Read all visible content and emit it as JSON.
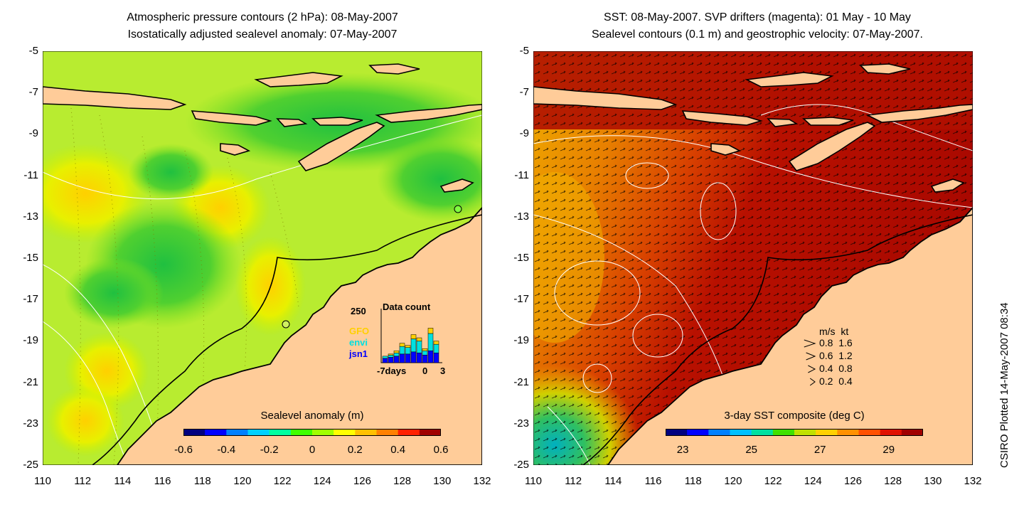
{
  "left_panel": {
    "title_line1": "Atmospheric pressure contours (2 hPa): 08-May-2007",
    "title_line2": "Isostatically adjusted sealevel anomaly: 07-May-2007",
    "colorbar": {
      "title": "Sealevel anomaly (m)",
      "ticks": [
        "-0.6",
        "-0.4",
        "-0.2",
        "0",
        "0.2",
        "0.4",
        "0.6"
      ],
      "range": [
        -0.6,
        0.6
      ],
      "colors": [
        "#000080",
        "#0000ff",
        "#0080ff",
        "#00d0ff",
        "#00ffa0",
        "#40ff00",
        "#a0ff00",
        "#ffff00",
        "#ffc000",
        "#ff8000",
        "#ff2000",
        "#a00000"
      ]
    },
    "inset": {
      "title": "Data count",
      "y_label": "250",
      "x_labels": [
        "-7days",
        "0",
        "3"
      ],
      "legend": [
        {
          "label": "GFO",
          "color": "#ffd000"
        },
        {
          "label": "envi",
          "color": "#00e0e0"
        },
        {
          "label": "jsn1",
          "color": "#0000ff"
        }
      ],
      "bars": [
        {
          "jsn1": 20,
          "envi": 10,
          "gfo": 0
        },
        {
          "jsn1": 25,
          "envi": 10,
          "gfo": 5
        },
        {
          "jsn1": 30,
          "envi": 15,
          "gfo": 10
        },
        {
          "jsn1": 40,
          "envi": 35,
          "gfo": 15
        },
        {
          "jsn1": 40,
          "envi": 30,
          "gfo": 10
        },
        {
          "jsn1": 50,
          "envi": 60,
          "gfo": 20
        },
        {
          "jsn1": 45,
          "envi": 55,
          "gfo": 15
        },
        {
          "jsn1": 35,
          "envi": 20,
          "gfo": 10
        },
        {
          "jsn1": 55,
          "envi": 80,
          "gfo": 25
        },
        {
          "jsn1": 45,
          "envi": 40,
          "gfo": 15
        }
      ]
    }
  },
  "right_panel": {
    "title_line1": "SST: 08-May-2007. SVP drifters (magenta): 01 May - 10 May",
    "title_line2": "Sealevel contours (0.1 m) and geostrophic velocity: 07-May-2007.",
    "colorbar": {
      "title": "3-day SST composite (deg C)",
      "ticks": [
        "23",
        "25",
        "27",
        "29"
      ],
      "range": [
        22.5,
        30
      ],
      "colors": [
        "#000080",
        "#0000ff",
        "#0080ff",
        "#00c0ff",
        "#00e0a0",
        "#40e000",
        "#c0e000",
        "#ffd000",
        "#ff9000",
        "#ff5000",
        "#e01000",
        "#a00000"
      ]
    },
    "velocity_legend": {
      "header_ms": "m/s",
      "header_kt": "kt",
      "rows": [
        {
          "ms": "0.8",
          "kt": "1.6",
          "scale": 0.8
        },
        {
          "ms": "0.6",
          "kt": "1.2",
          "scale": 0.6
        },
        {
          "ms": "0.4",
          "kt": "0.8",
          "scale": 0.4
        },
        {
          "ms": "0.2",
          "kt": "0.4",
          "scale": 0.2
        }
      ]
    }
  },
  "axes": {
    "lon_ticks": [
      "110",
      "112",
      "114",
      "116",
      "118",
      "120",
      "122",
      "124",
      "126",
      "128",
      "130",
      "132"
    ],
    "lat_ticks": [
      "-5",
      "-7",
      "-9",
      "-11",
      "-13",
      "-15",
      "-17",
      "-19",
      "-21",
      "-23",
      "-25"
    ],
    "lon_range": [
      110,
      132
    ],
    "lat_range": [
      -25,
      -5
    ]
  },
  "credit": "CSIRO Plotted 14-May-2007 08:34",
  "colors": {
    "land": "#ffcc99",
    "coast": "#000000",
    "contour": "#ffffff",
    "slope_base": "#a8e838",
    "slope_green": "#40d030",
    "sst_hot": "#b01000",
    "sst_warm": "#e06000",
    "sst_mid": "#f0a000",
    "sst_cool": "#20c060"
  }
}
